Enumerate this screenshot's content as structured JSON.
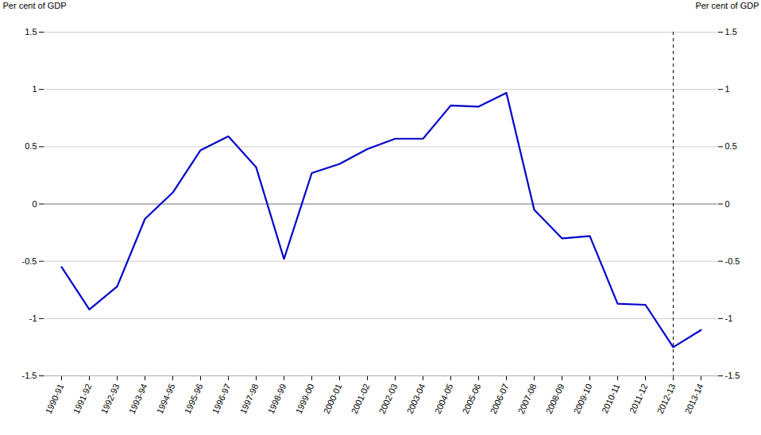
{
  "chart_data": {
    "type": "line",
    "categories": [
      "1990-91",
      "1991-92",
      "1992-93",
      "1993-94",
      "1994-95",
      "1995-96",
      "1996-97",
      "1997-98",
      "1998-99",
      "1999-00",
      "2000-01",
      "2001-02",
      "2002-03",
      "2003-04",
      "2004-05",
      "2005-06",
      "2006-07",
      "2007-08",
      "2008-09",
      "2009-10",
      "2010-11",
      "2011-12",
      "2012-13",
      "2013-14"
    ],
    "values": [
      -0.55,
      -0.92,
      -0.72,
      -0.13,
      0.1,
      0.47,
      0.59,
      0.32,
      -0.48,
      0.27,
      0.35,
      0.48,
      0.57,
      0.57,
      0.86,
      0.85,
      0.97,
      -0.05,
      -0.3,
      -0.28,
      -0.87,
      -0.88,
      -1.25,
      -1.1
    ],
    "color": "#0000CC",
    "ylabel": "Per cent of GDP",
    "y2label": "Per cent of GDP",
    "ylim": [
      -1.5,
      1.5
    ],
    "yticks": [
      -1.5,
      -1,
      -0.5,
      0,
      0.5,
      1,
      1.5
    ],
    "y2lim": [
      -1.5,
      1.5
    ],
    "y2ticks": [
      -1.5,
      -1,
      -0.5,
      0,
      0.5,
      1,
      1.5
    ],
    "vline": "2012-13",
    "hline": 0,
    "grid": true
  }
}
